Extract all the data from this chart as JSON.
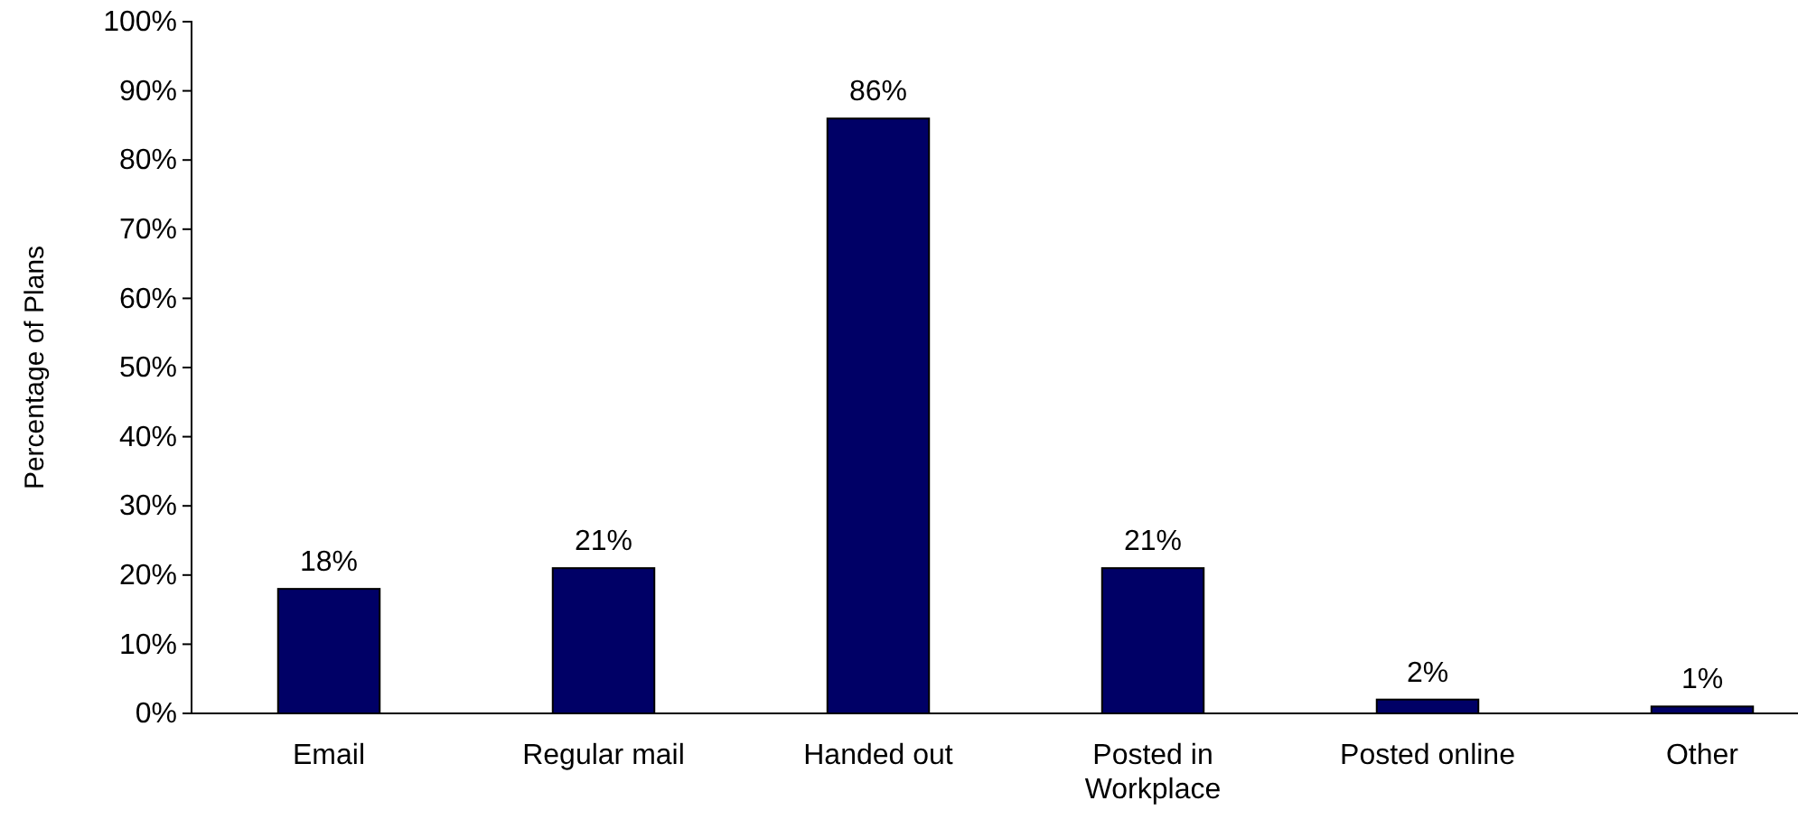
{
  "chart_data": {
    "type": "bar",
    "ylabel": "Percentage of Plans",
    "categories": [
      "Email",
      "Regular mail",
      "Handed out",
      "Posted in Workplace",
      "Posted online",
      "Other"
    ],
    "values": [
      18,
      21,
      86,
      21,
      2,
      1
    ],
    "value_labels": [
      "18%",
      "21%",
      "86%",
      "21%",
      "2%",
      "1%"
    ],
    "color": "#000066",
    "ylim": [
      0,
      100
    ],
    "yticks": [
      {
        "value": 0,
        "label": "0%"
      },
      {
        "value": 10,
        "label": "10%"
      },
      {
        "value": 20,
        "label": "20%"
      },
      {
        "value": 30,
        "label": "30%"
      },
      {
        "value": 40,
        "label": "40%"
      },
      {
        "value": 50,
        "label": "50%"
      },
      {
        "value": 60,
        "label": "60%"
      },
      {
        "value": 70,
        "label": "70%"
      },
      {
        "value": 80,
        "label": "80%"
      },
      {
        "value": 90,
        "label": "90%"
      },
      {
        "value": 100,
        "label": "100%"
      }
    ],
    "grid": false
  }
}
